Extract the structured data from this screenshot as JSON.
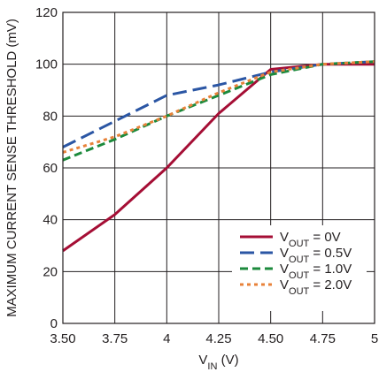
{
  "chart_data": {
    "type": "line",
    "title": "",
    "xlabel": {
      "main": "V",
      "sub": "IN",
      "unit": " (V)"
    },
    "ylabel": "MAXIMUM CURRENT SENSE THRESHOLD (mV)",
    "xlim": [
      3.5,
      5
    ],
    "ylim": [
      0,
      120
    ],
    "x_ticks": [
      3.5,
      3.75,
      4,
      4.25,
      4.5,
      4.75,
      5
    ],
    "x_tick_labels": [
      "3.50",
      "3.75",
      "4",
      "4.25",
      "4.50",
      "4.75",
      "5"
    ],
    "y_ticks": [
      0,
      20,
      40,
      60,
      80,
      100,
      120
    ],
    "y_tick_labels": [
      "0",
      "20",
      "40",
      "60",
      "80",
      "100",
      "120"
    ],
    "grid": true,
    "legend_position": "bottom-right",
    "series": [
      {
        "name": {
          "main": "V",
          "sub": "OUT",
          "rest": " = 0V"
        },
        "color": "#a50e35",
        "dash": "solid",
        "x": [
          3.5,
          3.75,
          4,
          4.25,
          4.5,
          4.75,
          5
        ],
        "values": [
          28,
          42,
          60,
          81,
          98,
          100,
          100
        ]
      },
      {
        "name": {
          "main": "V",
          "sub": "OUT",
          "rest": " = 0.5V"
        },
        "color": "#2b56a4",
        "dash": "long-dash",
        "x": [
          3.5,
          3.75,
          4,
          4.25,
          4.5,
          4.75,
          5
        ],
        "values": [
          68,
          78,
          88,
          92,
          97,
          100,
          101
        ]
      },
      {
        "name": {
          "main": "V",
          "sub": "OUT",
          "rest": " = 1.0V"
        },
        "color": "#1c8a3c",
        "dash": "dash",
        "x": [
          3.5,
          3.75,
          4,
          4.25,
          4.5,
          4.75,
          5
        ],
        "values": [
          63,
          71,
          80,
          88,
          96,
          100,
          101
        ]
      },
      {
        "name": {
          "main": "V",
          "sub": "OUT",
          "rest": " = 2.0V"
        },
        "color": "#e8823a",
        "dash": "dot",
        "x": [
          3.5,
          3.75,
          4,
          4.25,
          4.5,
          4.75,
          5
        ],
        "values": [
          66,
          72,
          80,
          89,
          97,
          100,
          101
        ]
      }
    ]
  }
}
